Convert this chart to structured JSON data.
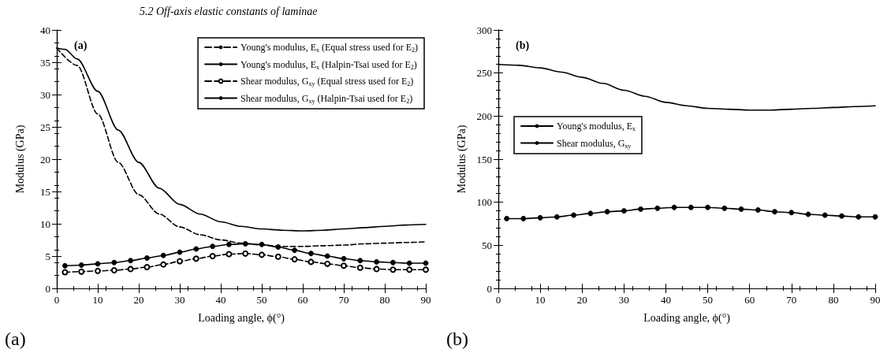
{
  "chart_data": [
    {
      "type": "line",
      "title": "5.2 Off-axis elastic constants of laminae",
      "xlabel": "Loading angle, ϕ(°)",
      "ylabel": "Modulus (GPa)",
      "xlim": [
        0,
        90
      ],
      "xticks": [
        0,
        10,
        20,
        30,
        40,
        50,
        60,
        70,
        80,
        90
      ],
      "ylim": [
        0,
        40
      ],
      "yticks": [
        0,
        5,
        10,
        15,
        20,
        25,
        30,
        35,
        40
      ],
      "grid": false,
      "legend": "top right",
      "annotations": [
        "(a)",
        "(a)"
      ],
      "series": [
        {
          "name": "Young's modulus, E$_{x}$ (Equal stress used for E$_{2}$)",
          "color": "#000000",
          "line_style": "dashed",
          "marker": "none",
          "x": [
            0,
            5,
            10,
            15,
            20,
            25,
            30,
            35,
            40,
            45,
            50,
            55,
            60,
            65,
            70,
            75,
            80,
            85,
            90
          ],
          "values": [
            37.2,
            34.5,
            27,
            19.5,
            14.5,
            11.5,
            9.5,
            8.3,
            7.5,
            7.0,
            6.7,
            6.5,
            6.5,
            6.6,
            6.7,
            6.9,
            7.0,
            7.1,
            7.2
          ]
        },
        {
          "name": "Young's modulus, E$_{x}$ (Halpin-Tsai used for E$_{2}$)",
          "color": "#000000",
          "line_style": "solid",
          "marker": "none",
          "x": [
            0,
            2,
            5,
            10,
            15,
            20,
            25,
            30,
            35,
            40,
            45,
            50,
            55,
            60,
            65,
            70,
            75,
            80,
            85,
            90
          ],
          "values": [
            37.2,
            37,
            35.5,
            30.5,
            24.5,
            19.5,
            15.5,
            13,
            11.5,
            10.3,
            9.6,
            9.2,
            9.0,
            8.9,
            9.0,
            9.2,
            9.4,
            9.6,
            9.8,
            9.9
          ]
        },
        {
          "name": "Shear modulus, G$_{xy}$ (Equal stress used for E$_{2}$)",
          "color": "#000000",
          "line_style": "dashed",
          "marker": "circle",
          "x": [
            2,
            6,
            10,
            14,
            18,
            22,
            26,
            30,
            34,
            38,
            42,
            46,
            50,
            54,
            58,
            62,
            66,
            70,
            74,
            78,
            82,
            86,
            90
          ],
          "values": [
            2.5,
            2.6,
            2.7,
            2.8,
            3.0,
            3.3,
            3.7,
            4.2,
            4.6,
            5.0,
            5.3,
            5.4,
            5.2,
            4.9,
            4.5,
            4.1,
            3.8,
            3.5,
            3.2,
            3.0,
            2.9,
            2.9,
            2.9
          ]
        },
        {
          "name": "Shear modulus, G$_{xy}$ (Halpin-Tsai used for E$_{2}$)",
          "color": "#000000",
          "line_style": "solid",
          "marker": "circle",
          "x": [
            2,
            6,
            10,
            14,
            18,
            22,
            26,
            30,
            34,
            38,
            42,
            46,
            50,
            54,
            58,
            62,
            66,
            70,
            74,
            78,
            82,
            86,
            90
          ],
          "values": [
            3.5,
            3.6,
            3.8,
            4.0,
            4.3,
            4.7,
            5.1,
            5.6,
            6.1,
            6.5,
            6.8,
            6.9,
            6.8,
            6.4,
            5.9,
            5.4,
            5.0,
            4.6,
            4.3,
            4.1,
            4.0,
            3.9,
            3.9
          ]
        }
      ]
    },
    {
      "type": "line",
      "xlabel": "Loading angle, ϕ(°)",
      "ylabel": "Modulus (GPa)",
      "xlim": [
        0,
        90
      ],
      "xticks": [
        0,
        10,
        20,
        30,
        40,
        50,
        60,
        70,
        80,
        90
      ],
      "ylim": [
        0,
        300
      ],
      "yticks": [
        0,
        50,
        100,
        150,
        200,
        250,
        300
      ],
      "grid": false,
      "legend": "left",
      "annotations": [
        "(b)",
        "(b)"
      ],
      "series": [
        {
          "name": "Young's modulus, E$_{x}$",
          "color": "#000000",
          "line_style": "solid",
          "marker": "none",
          "x": [
            0,
            5,
            10,
            15,
            20,
            25,
            30,
            35,
            40,
            45,
            50,
            55,
            60,
            65,
            70,
            75,
            80,
            85,
            90
          ],
          "values": [
            260,
            259,
            256,
            251,
            245,
            238,
            230,
            223,
            216,
            212,
            209,
            208,
            207,
            207,
            208,
            209,
            210,
            211,
            212
          ]
        },
        {
          "name": "Shear modulus, G$_{xy}$",
          "color": "#000000",
          "line_style": "solid",
          "marker": "circle",
          "x": [
            2,
            6,
            10,
            14,
            18,
            22,
            26,
            30,
            34,
            38,
            42,
            46,
            50,
            54,
            58,
            62,
            66,
            70,
            74,
            78,
            82,
            86,
            90
          ],
          "values": [
            81,
            81,
            82,
            83,
            85,
            87,
            89,
            90,
            92,
            93,
            94,
            94,
            94,
            93,
            92,
            91,
            89,
            88,
            86,
            85,
            84,
            83,
            83
          ]
        }
      ]
    }
  ]
}
